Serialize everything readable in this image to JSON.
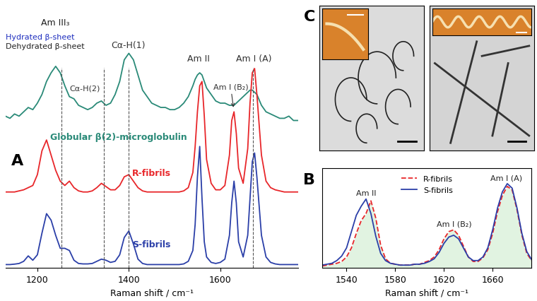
{
  "chart_data": [
    {
      "panel": "A",
      "type": "line",
      "x_label": "Raman shift / cm⁻¹",
      "xlim": [
        1130,
        1770
      ],
      "xticks": [
        1200,
        1400,
        1600
      ],
      "ylim": [
        0,
        11
      ],
      "tick_labels": "x",
      "x": [
        1130,
        1140,
        1150,
        1160,
        1170,
        1180,
        1190,
        1200,
        1210,
        1220,
        1230,
        1240,
        1250,
        1260,
        1270,
        1280,
        1290,
        1300,
        1310,
        1320,
        1330,
        1340,
        1350,
        1360,
        1370,
        1380,
        1390,
        1400,
        1410,
        1420,
        1430,
        1440,
        1450,
        1460,
        1470,
        1480,
        1490,
        1500,
        1510,
        1520,
        1530,
        1540,
        1545,
        1550,
        1555,
        1560,
        1565,
        1570,
        1580,
        1590,
        1600,
        1610,
        1620,
        1625,
        1630,
        1635,
        1640,
        1650,
        1660,
        1665,
        1670,
        1675,
        1680,
        1690,
        1700,
        1710,
        1720,
        1730,
        1740,
        1750,
        1760,
        1770
      ],
      "series": [
        {
          "name": "Globular β(2)-microglobulin",
          "color": "#2a8a78",
          "line_style": "solid",
          "values": [
            7.0,
            6.9,
            7.1,
            7.0,
            7.2,
            7.4,
            7.3,
            7.6,
            8.0,
            8.6,
            9.0,
            9.3,
            9.0,
            8.4,
            7.9,
            7.8,
            7.5,
            7.4,
            7.3,
            7.4,
            7.6,
            7.7,
            7.5,
            7.6,
            8.0,
            8.6,
            9.6,
            9.9,
            9.6,
            8.9,
            8.2,
            7.9,
            7.6,
            7.5,
            7.4,
            7.4,
            7.3,
            7.3,
            7.4,
            7.6,
            7.9,
            8.4,
            8.7,
            8.9,
            9.0,
            8.9,
            8.6,
            8.3,
            8.0,
            7.7,
            7.6,
            7.6,
            7.5,
            7.5,
            7.5,
            7.6,
            7.7,
            7.9,
            8.1,
            8.2,
            8.2,
            8.1,
            8.0,
            7.5,
            7.2,
            7.1,
            7.0,
            6.9,
            6.9,
            7.0,
            6.8,
            6.8
          ]
        },
        {
          "name": "R-fibrils",
          "color": "#e8262a",
          "line_style": "solid",
          "values": [
            3.5,
            3.5,
            3.5,
            3.55,
            3.6,
            3.7,
            3.8,
            4.3,
            5.4,
            5.9,
            5.2,
            4.5,
            4.0,
            3.8,
            4.0,
            3.7,
            3.55,
            3.5,
            3.5,
            3.55,
            3.7,
            3.9,
            3.75,
            3.6,
            3.6,
            3.8,
            4.2,
            4.3,
            4.0,
            3.7,
            3.55,
            3.5,
            3.5,
            3.5,
            3.5,
            3.5,
            3.5,
            3.5,
            3.5,
            3.55,
            3.7,
            4.4,
            5.6,
            7.2,
            8.4,
            8.6,
            7.0,
            5.0,
            3.9,
            3.6,
            3.6,
            3.8,
            5.2,
            6.8,
            7.2,
            6.2,
            4.6,
            3.9,
            5.5,
            7.6,
            9.0,
            9.2,
            8.0,
            5.2,
            4.0,
            3.7,
            3.6,
            3.55,
            3.5,
            3.5,
            3.5,
            3.5
          ]
        },
        {
          "name": "S-fibrils",
          "color": "#2b3fa8",
          "line_style": "solid",
          "values": [
            0.15,
            0.15,
            0.17,
            0.2,
            0.3,
            0.55,
            0.35,
            0.6,
            1.6,
            2.5,
            2.2,
            1.5,
            0.9,
            0.9,
            0.8,
            0.35,
            0.2,
            0.18,
            0.18,
            0.2,
            0.3,
            0.4,
            0.35,
            0.25,
            0.3,
            0.6,
            1.4,
            1.7,
            1.1,
            0.4,
            0.2,
            0.15,
            0.15,
            0.15,
            0.15,
            0.15,
            0.15,
            0.15,
            0.15,
            0.18,
            0.3,
            0.8,
            2.0,
            4.2,
            5.6,
            3.2,
            1.2,
            0.5,
            0.25,
            0.2,
            0.25,
            0.4,
            1.5,
            3.0,
            4.0,
            3.0,
            1.2,
            0.5,
            1.5,
            3.2,
            4.9,
            5.3,
            4.2,
            1.5,
            0.5,
            0.25,
            0.18,
            0.15,
            0.15,
            0.15,
            0.15,
            0.15
          ]
        }
      ],
      "reference_x": [
        1252,
        1345,
        1400,
        1672
      ],
      "annotations": [
        "Am III₃",
        "Hydrated β-sheet",
        "Dehydrated β-sheet",
        "Cα-H(2)",
        "Cα-H(1)",
        "Am II",
        "Am I (A)",
        "Am I (B₂)"
      ]
    },
    {
      "panel": "B",
      "type": "line",
      "x_label": "Raman shift / cm⁻¹",
      "xlim": [
        1520,
        1692
      ],
      "xticks": [
        1540,
        1580,
        1620,
        1660
      ],
      "ylim": [
        0,
        1.1
      ],
      "tick_labels": "x",
      "legend": "upper center",
      "x": [
        1520,
        1524,
        1528,
        1532,
        1536,
        1540,
        1544,
        1548,
        1552,
        1556,
        1560,
        1564,
        1568,
        1572,
        1576,
        1580,
        1584,
        1588,
        1592,
        1596,
        1600,
        1604,
        1608,
        1612,
        1616,
        1620,
        1624,
        1628,
        1632,
        1636,
        1640,
        1644,
        1648,
        1652,
        1656,
        1660,
        1664,
        1668,
        1672,
        1676,
        1680,
        1684,
        1688,
        1692
      ],
      "series": [
        {
          "name": "R-fibrils",
          "color": "#e8262a",
          "line_style": "dashed",
          "values": [
            0.02,
            0.03,
            0.04,
            0.05,
            0.07,
            0.12,
            0.22,
            0.38,
            0.52,
            0.6,
            0.74,
            0.55,
            0.25,
            0.1,
            0.05,
            0.04,
            0.03,
            0.03,
            0.03,
            0.04,
            0.04,
            0.06,
            0.08,
            0.12,
            0.2,
            0.32,
            0.4,
            0.42,
            0.36,
            0.24,
            0.12,
            0.07,
            0.07,
            0.11,
            0.2,
            0.38,
            0.62,
            0.8,
            0.9,
            0.86,
            0.64,
            0.36,
            0.16,
            0.08
          ]
        },
        {
          "name": "S-fibrils",
          "color": "#2b3fa8",
          "line_style": "solid",
          "values": [
            0.03,
            0.04,
            0.05,
            0.08,
            0.13,
            0.22,
            0.4,
            0.58,
            0.68,
            0.76,
            0.6,
            0.35,
            0.16,
            0.08,
            0.05,
            0.04,
            0.03,
            0.03,
            0.03,
            0.04,
            0.04,
            0.05,
            0.07,
            0.1,
            0.17,
            0.27,
            0.34,
            0.36,
            0.32,
            0.22,
            0.12,
            0.08,
            0.08,
            0.12,
            0.22,
            0.42,
            0.66,
            0.84,
            0.93,
            0.88,
            0.66,
            0.38,
            0.18,
            0.09
          ]
        }
      ],
      "annotations": [
        "Am II",
        "Am I (B₂)",
        "Am I (A)"
      ]
    }
  ],
  "images": {
    "panel": "C"
  }
}
